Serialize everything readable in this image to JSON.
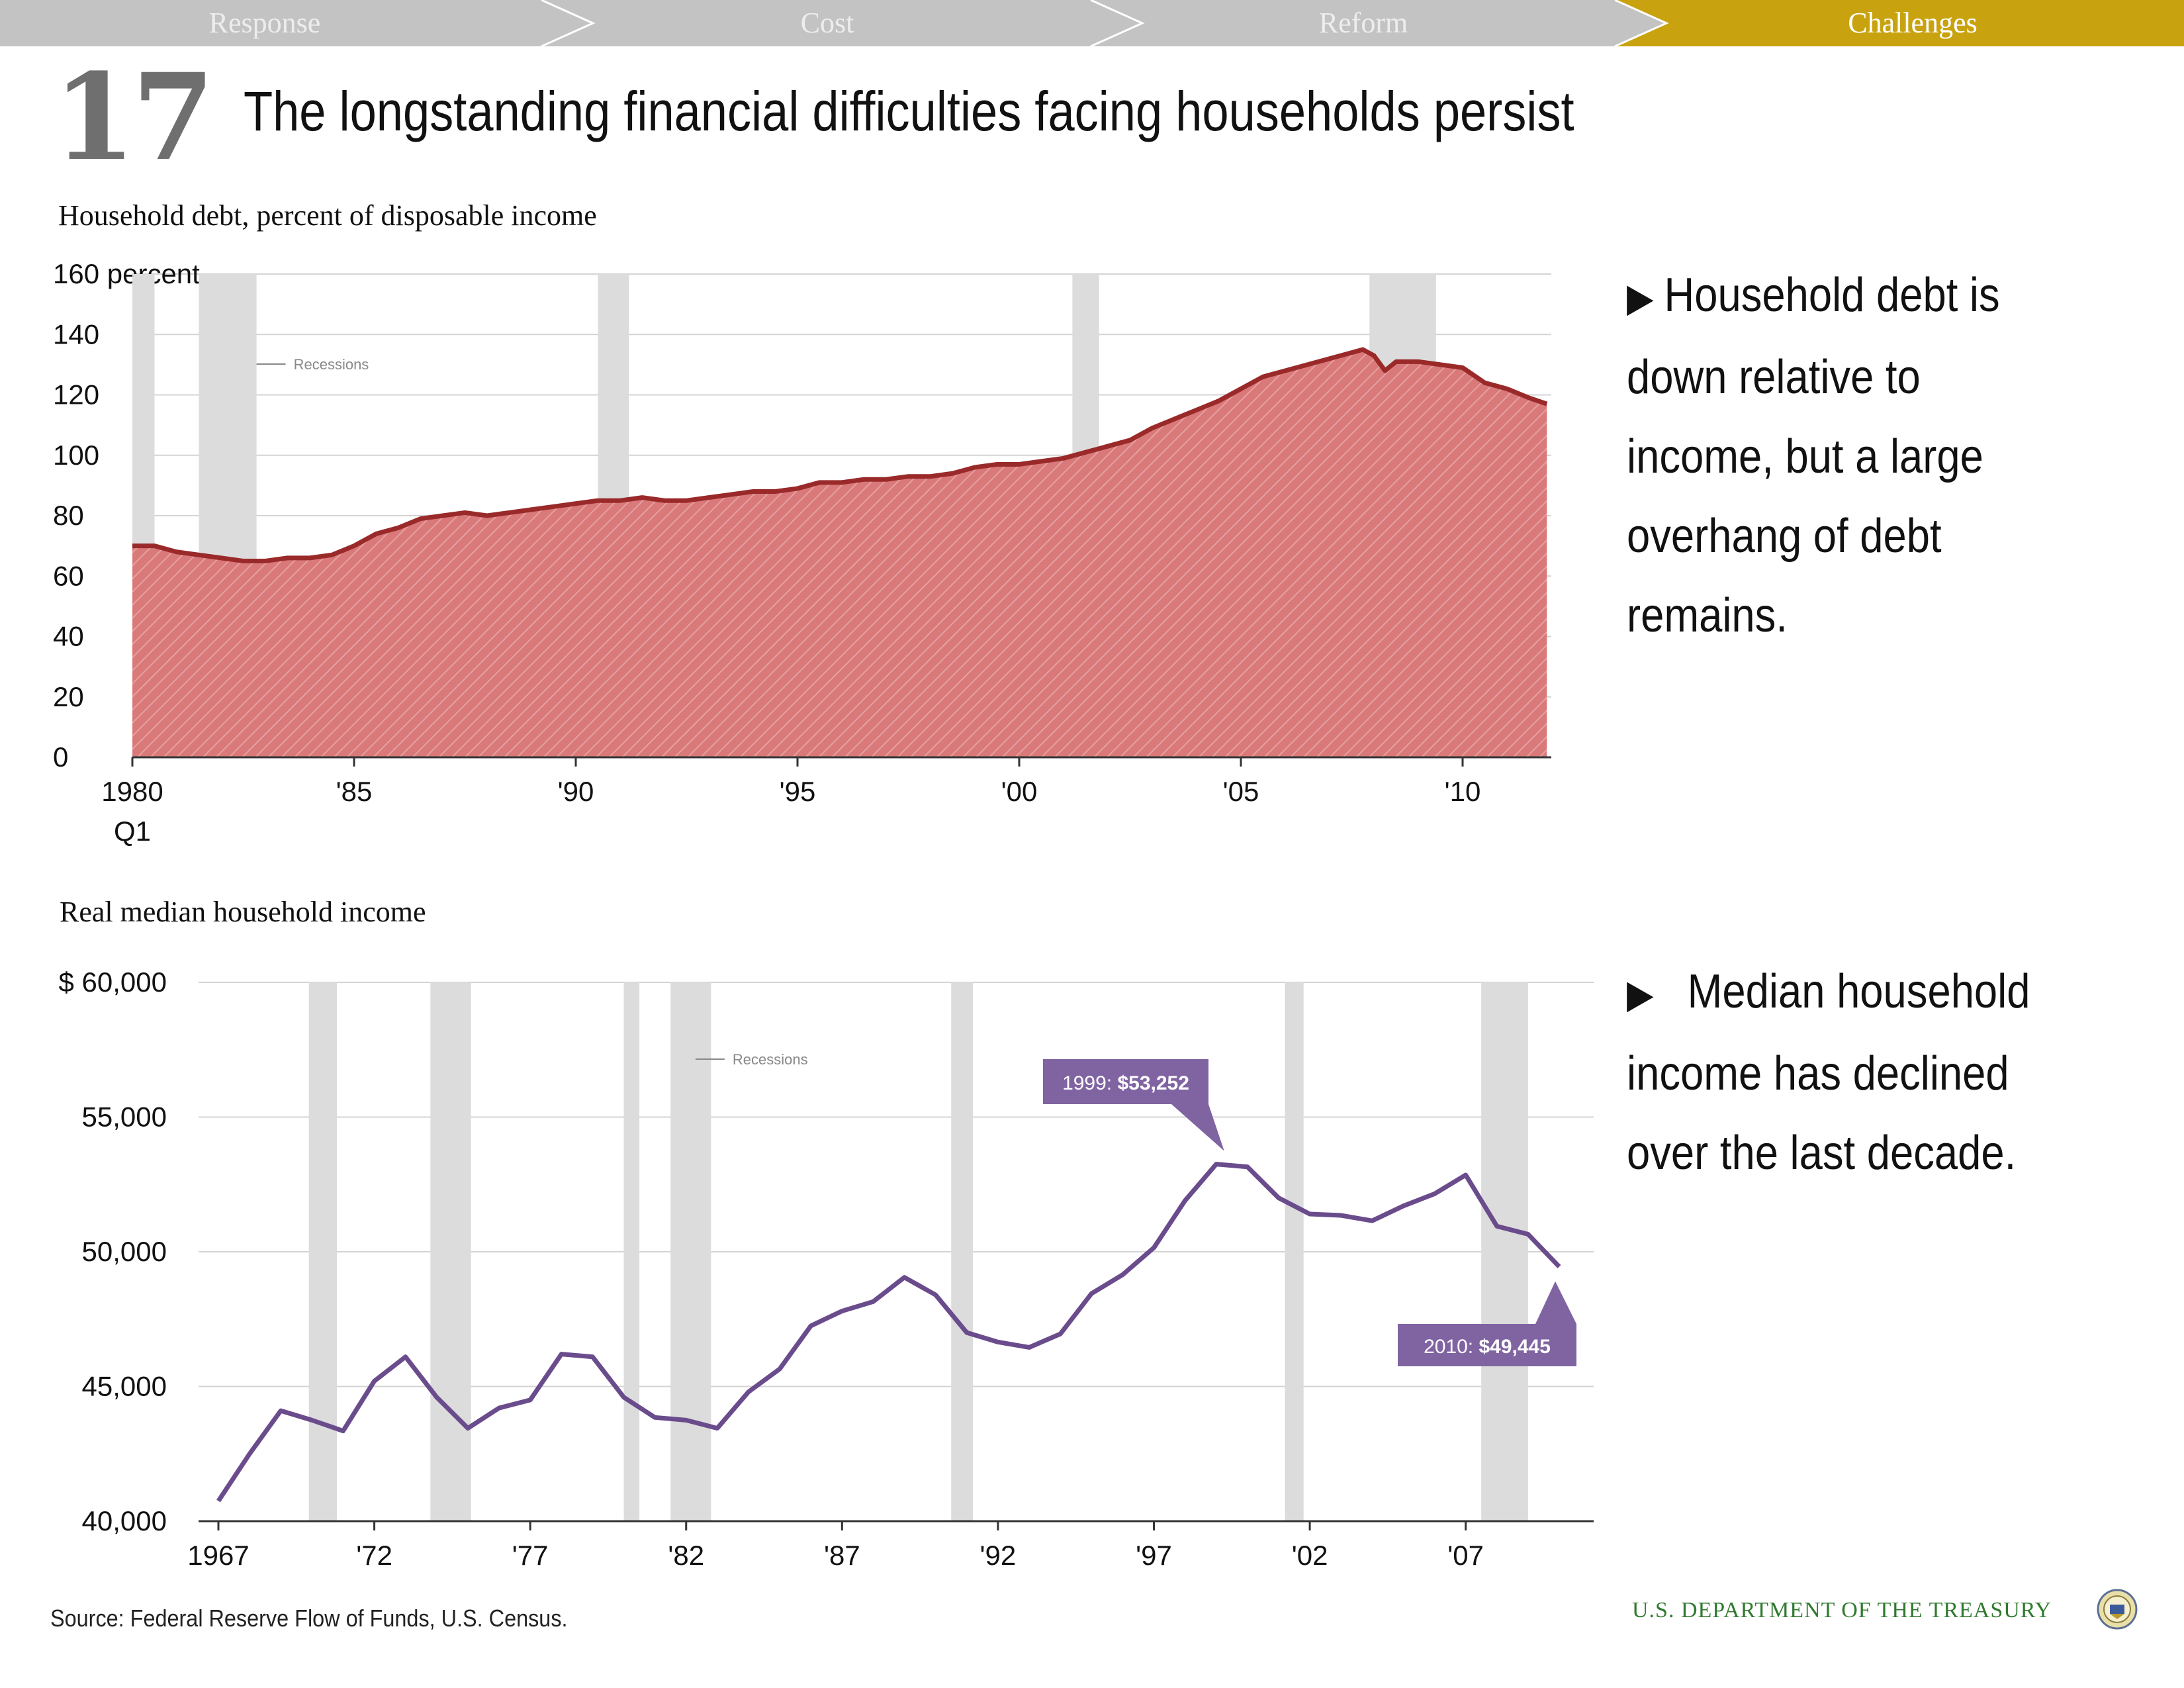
{
  "nav": {
    "items": [
      "Response",
      "Cost",
      "Reform",
      "Challenges"
    ],
    "active": "Challenges",
    "colors": {
      "inactive": "#c3c3c3",
      "active": "#c9a30f"
    }
  },
  "page": {
    "number": "17",
    "title": "The longstanding financial difficulties facing households persist"
  },
  "bullets": [
    "Household debt is down relative to income, but a large overhang of debt remains.",
    "Median household income has declined over the last decade."
  ],
  "footer": {
    "source": "Source: Federal Reserve Flow of Funds, U.S. Census.",
    "department": "U.S. DEPARTMENT OF THE TREASURY"
  },
  "chart_data": [
    {
      "type": "area",
      "title": "Household debt, percent of disposable income",
      "ylim": [
        0,
        160
      ],
      "yticks": [
        0,
        20,
        40,
        60,
        80,
        100,
        120,
        140,
        160
      ],
      "ytick_labels": [
        "0",
        "20",
        "40",
        "60",
        "80",
        "100",
        "120",
        "140",
        "160 percent"
      ],
      "xlim": [
        1980.0,
        2012.0
      ],
      "xticks": [
        1980,
        1985,
        1990,
        1995,
        2000,
        2005,
        2010
      ],
      "xtick_labels": [
        "1980",
        "'85",
        "'90",
        "'95",
        "'00",
        "'05",
        "'10"
      ],
      "x_first_label_sub": "Q1",
      "legend": {
        "label": "Recessions",
        "placement": "top-left"
      },
      "grid": true,
      "colors": {
        "fill": "#d9797a",
        "line": "#9a2a2a",
        "recession": "#dcdcdc"
      },
      "recessions": [
        [
          1980.0,
          1980.5
        ],
        [
          1981.5,
          1982.8
        ],
        [
          1990.5,
          1991.2
        ],
        [
          2001.2,
          2001.8
        ],
        [
          2007.9,
          2009.4
        ]
      ],
      "x": [
        1980.0,
        1980.5,
        1981.0,
        1981.5,
        1982.0,
        1982.5,
        1983.0,
        1983.5,
        1984.0,
        1984.5,
        1985.0,
        1985.5,
        1986.0,
        1986.5,
        1987.0,
        1987.5,
        1988.0,
        1988.5,
        1989.0,
        1989.5,
        1990.0,
        1990.5,
        1991.0,
        1991.5,
        1992.0,
        1992.5,
        1993.0,
        1993.5,
        1994.0,
        1994.5,
        1995.0,
        1995.5,
        1996.0,
        1996.5,
        1997.0,
        1997.5,
        1998.0,
        1998.5,
        1999.0,
        1999.5,
        2000.0,
        2000.5,
        2001.0,
        2001.5,
        2002.0,
        2002.5,
        2003.0,
        2003.5,
        2004.0,
        2004.5,
        2005.0,
        2005.5,
        2006.0,
        2006.5,
        2007.0,
        2007.5,
        2007.75,
        2008.0,
        2008.25,
        2008.5,
        2009.0,
        2009.5,
        2010.0,
        2010.5,
        2011.0,
        2011.5,
        2011.9
      ],
      "values": [
        70,
        70,
        68,
        67,
        66,
        65,
        65,
        66,
        66,
        67,
        70,
        74,
        76,
        79,
        80,
        81,
        80,
        81,
        82,
        83,
        84,
        85,
        85,
        86,
        85,
        85,
        86,
        87,
        88,
        88,
        89,
        91,
        91,
        92,
        92,
        93,
        93,
        94,
        96,
        97,
        97,
        98,
        99,
        101,
        103,
        105,
        109,
        112,
        115,
        118,
        122,
        126,
        128,
        130,
        132,
        134,
        135,
        133,
        128,
        131,
        131,
        130,
        129,
        124,
        122,
        119,
        117
      ]
    },
    {
      "type": "line",
      "title": "Real median household income",
      "ylim": [
        40000,
        60000
      ],
      "yticks": [
        40000,
        45000,
        50000,
        55000,
        60000
      ],
      "ytick_labels": [
        "40,000",
        "45,000",
        "50,000",
        "55,000",
        "$ 60,000"
      ],
      "xlim": [
        1967,
        2010
      ],
      "xticks": [
        1967,
        1972,
        1977,
        1982,
        1987,
        1992,
        1997,
        2002,
        2007
      ],
      "xtick_labels": [
        "1967",
        "'72",
        "'77",
        "'82",
        "'87",
        "'92",
        "'97",
        "'02",
        "'07"
      ],
      "legend": {
        "label": "Recessions",
        "placement": "top-center"
      },
      "grid": true,
      "colors": {
        "line": "#6a4c8c",
        "callout": "#8064a2",
        "recession": "#dcdcdc"
      },
      "recessions": [
        [
          1969.9,
          1970.8
        ],
        [
          1973.8,
          1975.1
        ],
        [
          1980.0,
          1980.5
        ],
        [
          1981.5,
          1982.8
        ],
        [
          1990.5,
          1991.2
        ],
        [
          2001.2,
          2001.8
        ],
        [
          2007.5,
          2009.0
        ]
      ],
      "x": [
        1967,
        1968,
        1969,
        1970,
        1971,
        1972,
        1973,
        1974,
        1975,
        1976,
        1977,
        1978,
        1979,
        1980,
        1981,
        1982,
        1983,
        1984,
        1985,
        1986,
        1987,
        1988,
        1989,
        1990,
        1991,
        1992,
        1993,
        1994,
        1995,
        1996,
        1997,
        1998,
        1999,
        2000,
        2001,
        2002,
        2003,
        2004,
        2005,
        2006,
        2007,
        2008,
        2009,
        2010
      ],
      "values": [
        40750,
        42500,
        44100,
        43750,
        43350,
        45200,
        46100,
        44600,
        43450,
        44200,
        44500,
        46200,
        46100,
        44600,
        43850,
        43750,
        43450,
        44800,
        45650,
        47250,
        47800,
        48150,
        49050,
        48400,
        47000,
        46650,
        46450,
        46950,
        48450,
        49150,
        50150,
        51900,
        53252,
        53150,
        52000,
        51400,
        51350,
        51150,
        51700,
        52150,
        52850,
        50950,
        50650,
        49445
      ],
      "annotations": [
        {
          "year_label": "1999: ",
          "value_label": "$53,252",
          "x": 1999,
          "y": 53252
        },
        {
          "year_label": "2010: ",
          "value_label": "$49,445",
          "x": 2010,
          "y": 49445
        }
      ]
    }
  ]
}
